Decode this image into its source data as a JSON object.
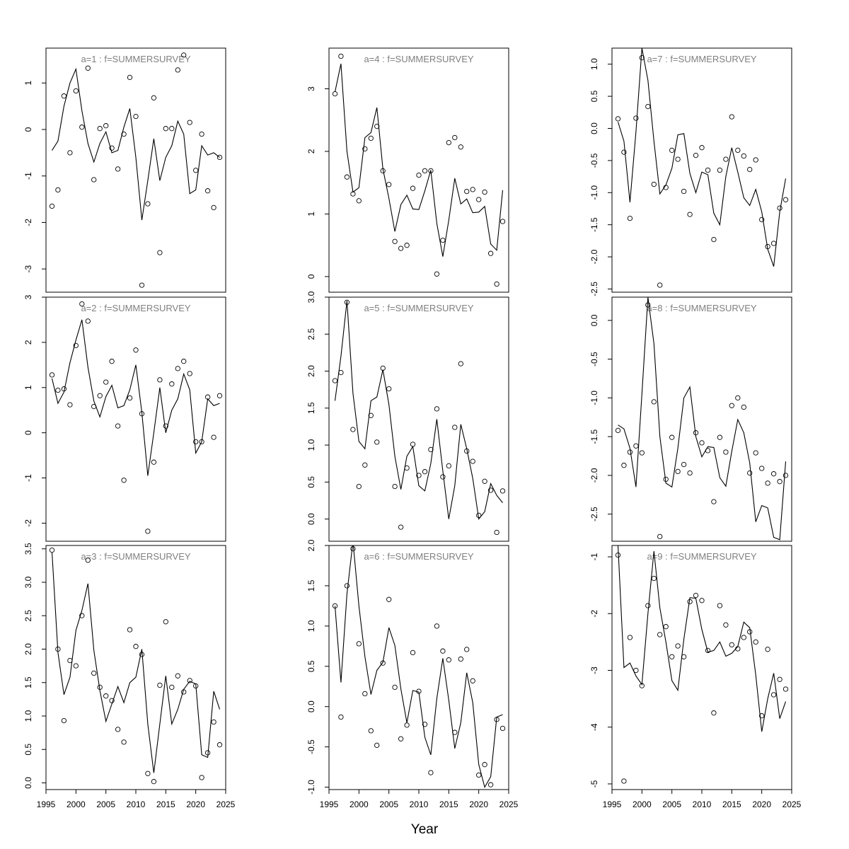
{
  "figure": {
    "xlabel": "Year",
    "x_ticks": [
      1995,
      2000,
      2005,
      2010,
      2015,
      2020,
      2025
    ]
  },
  "chart_data": [
    {
      "type": "scatter",
      "title": "a=1  :  f=SUMMERSURVEY",
      "xlim": [
        1995,
        2025
      ],
      "ylim": [
        -3.5,
        1.75
      ],
      "yticks": [
        -3,
        -2,
        -1,
        0,
        1
      ],
      "ytick_labels": [
        "-3",
        "-2",
        "-1",
        "0",
        "1"
      ],
      "x": [
        1996,
        1997,
        1998,
        1999,
        2000,
        2001,
        2002,
        2003,
        2004,
        2005,
        2006,
        2007,
        2008,
        2009,
        2010,
        2011,
        2012,
        2013,
        2014,
        2015,
        2016,
        2017,
        2018,
        2019,
        2020,
        2021,
        2022,
        2023,
        2024
      ],
      "observed": [
        -1.65,
        -1.3,
        0.72,
        -0.5,
        0.83,
        0.05,
        1.32,
        -1.08,
        0.02,
        0.08,
        -0.4,
        -0.85,
        -0.1,
        1.12,
        0.28,
        -3.35,
        -1.6,
        0.68,
        -2.65,
        0.02,
        0.02,
        1.28,
        1.6,
        0.15,
        -0.88,
        -0.1,
        -1.32,
        -1.68,
        -0.6
      ],
      "fitted": [
        -0.45,
        -0.25,
        0.5,
        1.0,
        1.3,
        0.4,
        -0.3,
        -0.7,
        -0.3,
        -0.05,
        -0.5,
        -0.45,
        0.05,
        0.45,
        -0.6,
        -1.95,
        -1.1,
        -0.2,
        -1.1,
        -0.6,
        -0.35,
        0.18,
        -0.1,
        -1.38,
        -1.3,
        -0.35,
        -0.55,
        -0.5,
        -0.6
      ]
    },
    {
      "type": "scatter",
      "title": "a=2  :  f=SUMMERSURVEY",
      "xlim": [
        1995,
        2025
      ],
      "ylim": [
        -2.4,
        3.0
      ],
      "yticks": [
        -2,
        -1,
        0,
        1,
        2,
        3
      ],
      "ytick_labels": [
        "-2",
        "-1",
        "0",
        "1",
        "2",
        "3"
      ],
      "x": [
        1996,
        1997,
        1998,
        1999,
        2000,
        2001,
        2002,
        2003,
        2004,
        2005,
        2006,
        2007,
        2008,
        2009,
        2010,
        2011,
        2012,
        2013,
        2014,
        2015,
        2016,
        2017,
        2018,
        2019,
        2020,
        2021,
        2022,
        2023,
        2024
      ],
      "observed": [
        1.28,
        0.94,
        0.97,
        0.62,
        1.93,
        2.85,
        2.47,
        0.58,
        0.82,
        1.12,
        1.58,
        0.15,
        -1.05,
        0.77,
        1.83,
        0.42,
        -2.18,
        -0.65,
        1.17,
        0.15,
        1.08,
        1.42,
        1.58,
        1.31,
        -0.2,
        -0.2,
        0.79,
        -0.1,
        0.82
      ],
      "fitted": [
        1.2,
        0.65,
        0.9,
        1.55,
        2.05,
        2.5,
        1.45,
        0.7,
        0.35,
        0.8,
        1.05,
        0.55,
        0.6,
        0.95,
        1.5,
        0.45,
        -0.95,
        0.0,
        1.0,
        0.0,
        0.5,
        0.75,
        1.3,
        0.95,
        -0.45,
        -0.2,
        0.75,
        0.6,
        0.65
      ]
    },
    {
      "type": "scatter",
      "title": "a=3  :  f=SUMMERSURVEY",
      "xlim": [
        1995,
        2025
      ],
      "ylim": [
        -0.1,
        3.55
      ],
      "yticks": [
        0.0,
        0.5,
        1.0,
        1.5,
        2.0,
        2.5,
        3.0,
        3.5
      ],
      "ytick_labels": [
        "0.0",
        "0.5",
        "1.0",
        "1.5",
        "2.0",
        "2.5",
        "3.0",
        "3.5"
      ],
      "x": [
        1996,
        1997,
        1998,
        1999,
        2000,
        2001,
        2002,
        2003,
        2004,
        2005,
        2006,
        2007,
        2008,
        2009,
        2010,
        2011,
        2012,
        2013,
        2014,
        2015,
        2016,
        2017,
        2018,
        2019,
        2020,
        2021,
        2022,
        2023,
        2024
      ],
      "observed": [
        3.48,
        2.0,
        0.93,
        1.83,
        1.75,
        2.5,
        3.33,
        1.64,
        1.43,
        1.3,
        1.23,
        0.8,
        0.61,
        2.29,
        2.04,
        1.92,
        0.14,
        0.02,
        1.46,
        2.41,
        1.43,
        1.6,
        1.36,
        1.53,
        1.45,
        0.08,
        0.45,
        0.91,
        0.57
      ],
      "fitted": [
        3.45,
        1.95,
        1.32,
        1.58,
        2.28,
        2.58,
        2.98,
        1.98,
        1.38,
        0.92,
        1.18,
        1.44,
        1.2,
        1.5,
        1.58,
        2.0,
        0.88,
        0.15,
        0.88,
        1.6,
        0.88,
        1.1,
        1.4,
        1.52,
        1.48,
        0.42,
        0.38,
        1.37,
        1.1
      ]
    },
    {
      "type": "scatter",
      "title": "a=4  :  f=SUMMERSURVEY",
      "xlim": [
        1995,
        2025
      ],
      "ylim": [
        -0.25,
        3.65
      ],
      "yticks": [
        0,
        1,
        2,
        3
      ],
      "ytick_labels": [
        "0",
        "1",
        "2",
        "3"
      ],
      "x": [
        1996,
        1997,
        1998,
        1999,
        2000,
        2001,
        2002,
        2003,
        2004,
        2005,
        2006,
        2007,
        2008,
        2009,
        2010,
        2011,
        2012,
        2013,
        2014,
        2015,
        2016,
        2017,
        2018,
        2019,
        2020,
        2021,
        2022,
        2023,
        2024
      ],
      "observed": [
        2.92,
        3.52,
        1.59,
        1.32,
        1.21,
        2.04,
        2.21,
        2.4,
        1.69,
        1.47,
        0.56,
        0.45,
        0.5,
        1.41,
        1.62,
        1.69,
        1.69,
        0.04,
        0.58,
        2.14,
        2.22,
        2.07,
        1.36,
        1.39,
        1.23,
        1.35,
        0.37,
        -0.12,
        0.88
      ],
      "fitted": [
        2.95,
        3.4,
        2.0,
        1.35,
        1.42,
        2.22,
        2.3,
        2.7,
        1.72,
        1.25,
        0.72,
        1.15,
        1.3,
        1.08,
        1.07,
        1.37,
        1.7,
        0.85,
        0.32,
        0.9,
        1.57,
        1.16,
        1.24,
        1.02,
        1.03,
        1.12,
        0.52,
        0.42,
        1.38
      ]
    },
    {
      "type": "scatter",
      "title": "a=5  :  f=SUMMERSURVEY",
      "xlim": [
        1995,
        2025
      ],
      "ylim": [
        -0.3,
        3.0
      ],
      "yticks": [
        0.0,
        0.5,
        1.0,
        1.5,
        2.0,
        2.5,
        3.0
      ],
      "ytick_labels": [
        "0.0",
        "0.5",
        "1.0",
        "1.5",
        "2.0",
        "2.5",
        "3.0"
      ],
      "x": [
        1996,
        1997,
        1998,
        1999,
        2000,
        2001,
        2002,
        2003,
        2004,
        2005,
        2006,
        2007,
        2008,
        2009,
        2010,
        2011,
        2012,
        2013,
        2014,
        2015,
        2016,
        2017,
        2018,
        2019,
        2020,
        2021,
        2022,
        2023,
        2024
      ],
      "observed": [
        1.87,
        1.98,
        2.93,
        1.21,
        0.44,
        0.73,
        1.4,
        1.04,
        2.04,
        1.76,
        0.44,
        -0.11,
        0.69,
        1.01,
        0.59,
        0.64,
        0.94,
        1.49,
        0.57,
        0.72,
        1.24,
        2.1,
        0.92,
        0.78,
        0.05,
        0.51,
        0.39,
        -0.18,
        0.38
      ],
      "fitted": [
        1.6,
        2.2,
        2.95,
        1.7,
        1.05,
        0.95,
        1.6,
        1.65,
        2.02,
        1.55,
        0.85,
        0.4,
        0.85,
        0.98,
        0.45,
        0.38,
        0.75,
        1.35,
        0.65,
        0.0,
        0.45,
        1.28,
        0.95,
        0.55,
        0.0,
        0.1,
        0.48,
        0.32,
        0.22
      ]
    },
    {
      "type": "scatter",
      "title": "a=6  :  f=SUMMERSURVEY",
      "xlim": [
        1995,
        2025
      ],
      "ylim": [
        -1.03,
        2.0
      ],
      "yticks": [
        -1.0,
        -0.5,
        0.0,
        0.5,
        1.0,
        1.5,
        2.0
      ],
      "ytick_labels": [
        "-1.0",
        "-0.5",
        "0.0",
        "0.5",
        "1.0",
        "1.5",
        "2.0"
      ],
      "x": [
        1996,
        1997,
        1998,
        1999,
        2000,
        2001,
        2002,
        2003,
        2004,
        2005,
        2006,
        2007,
        2008,
        2009,
        2010,
        2011,
        2012,
        2013,
        2014,
        2015,
        2016,
        2017,
        2018,
        2019,
        2020,
        2021,
        2022,
        2023,
        2024
      ],
      "observed": [
        1.25,
        -0.13,
        1.5,
        1.96,
        0.78,
        0.16,
        -0.3,
        -0.48,
        0.54,
        1.33,
        0.24,
        -0.4,
        -0.23,
        0.67,
        0.19,
        -0.22,
        -0.82,
        1.0,
        0.69,
        0.58,
        -0.32,
        0.59,
        0.71,
        0.32,
        -0.85,
        -0.72,
        -0.97,
        -0.16,
        -0.27
      ],
      "fitted": [
        1.25,
        0.3,
        1.4,
        2.05,
        1.25,
        0.62,
        0.15,
        0.45,
        0.55,
        0.98,
        0.76,
        0.22,
        -0.2,
        0.2,
        0.18,
        -0.38,
        -0.6,
        0.1,
        0.6,
        0.08,
        -0.52,
        -0.2,
        0.42,
        0.05,
        -0.72,
        -1.0,
        -0.87,
        -0.13,
        -0.1
      ]
    },
    {
      "type": "scatter",
      "title": "a=7  :  f=SUMMERSURVEY",
      "xlim": [
        1995,
        2025
      ],
      "ylim": [
        -2.55,
        1.25
      ],
      "yticks": [
        -2.5,
        -2.0,
        -1.5,
        -1.0,
        -0.5,
        0.0,
        0.5,
        1.0
      ],
      "ytick_labels": [
        "-2.5",
        "-2.0",
        "-1.5",
        "-1.0",
        "-0.5",
        "0.0",
        "0.5",
        "1.0"
      ],
      "x": [
        1996,
        1997,
        1998,
        1999,
        2000,
        2001,
        2002,
        2003,
        2004,
        2005,
        2006,
        2007,
        2008,
        2009,
        2010,
        2011,
        2012,
        2013,
        2014,
        2015,
        2016,
        2017,
        2018,
        2019,
        2020,
        2021,
        2022,
        2023,
        2024
      ],
      "observed": [
        0.15,
        -0.37,
        -1.4,
        0.16,
        1.1,
        0.34,
        -0.87,
        -2.44,
        -0.92,
        -0.34,
        -0.48,
        -0.98,
        -1.34,
        -0.42,
        -0.3,
        -0.65,
        -1.73,
        -0.65,
        -0.48,
        0.18,
        -0.34,
        -0.43,
        -0.64,
        -0.49,
        -1.42,
        -1.84,
        -1.79,
        -1.24,
        -1.11
      ],
      "fitted": [
        0.1,
        -0.2,
        -1.15,
        -0.05,
        1.25,
        0.75,
        -0.2,
        -1.02,
        -0.88,
        -0.62,
        -0.1,
        -0.08,
        -0.7,
        -1.0,
        -0.68,
        -0.72,
        -1.32,
        -1.5,
        -0.75,
        -0.3,
        -0.68,
        -1.08,
        -1.2,
        -0.95,
        -1.3,
        -1.88,
        -2.15,
        -1.3,
        -0.78
      ]
    },
    {
      "type": "scatter",
      "title": "a=8  :  f=SUMMERSURVEY",
      "xlim": [
        1995,
        2025
      ],
      "ylim": [
        -2.85,
        0.3
      ],
      "yticks": [
        -2.5,
        -2.0,
        -1.5,
        -1.0,
        -0.5,
        0.0
      ],
      "ytick_labels": [
        "-2.5",
        "-2.0",
        "-1.5",
        "-1.0",
        "-0.5",
        "0.0"
      ],
      "x": [
        1996,
        1997,
        1998,
        1999,
        2000,
        2001,
        2002,
        2003,
        2004,
        2005,
        2006,
        2007,
        2008,
        2009,
        2010,
        2011,
        2012,
        2013,
        2014,
        2015,
        2016,
        2017,
        2018,
        2019,
        2020,
        2021,
        2022,
        2023,
        2024
      ],
      "observed": [
        -1.42,
        -1.87,
        -1.7,
        -1.62,
        -1.71,
        0.2,
        -1.05,
        -2.79,
        -2.05,
        -1.51,
        -1.95,
        -1.86,
        -1.97,
        -1.45,
        -1.58,
        -1.68,
        -2.34,
        -1.51,
        -1.7,
        -1.1,
        -1.0,
        -1.12,
        -1.97,
        -1.71,
        -1.91,
        -2.1,
        -1.98,
        -2.08,
        -2.0
      ],
      "fitted": [
        -1.35,
        -1.4,
        -1.65,
        -2.15,
        -0.95,
        0.3,
        -0.3,
        -1.5,
        -2.1,
        -2.15,
        -1.65,
        -1.0,
        -0.86,
        -1.5,
        -1.76,
        -1.63,
        -1.64,
        -2.03,
        -2.14,
        -1.69,
        -1.28,
        -1.45,
        -1.84,
        -2.6,
        -2.39,
        -2.42,
        -2.8,
        -2.83,
        -1.82
      ]
    },
    {
      "type": "scatter",
      "title": "a=9  :  f=SUMMERSURVEY",
      "xlim": [
        1995,
        2025
      ],
      "ylim": [
        -5.1,
        -0.8
      ],
      "yticks": [
        -5,
        -4,
        -3,
        -2,
        -1
      ],
      "ytick_labels": [
        "-5",
        "-4",
        "-3",
        "-2",
        "-1"
      ],
      "x": [
        1996,
        1997,
        1998,
        1999,
        2000,
        2001,
        2002,
        2003,
        2004,
        2005,
        2006,
        2007,
        2008,
        2009,
        2010,
        2011,
        2012,
        2013,
        2014,
        2015,
        2016,
        2017,
        2018,
        2019,
        2020,
        2021,
        2022,
        2023,
        2024
      ],
      "observed": [
        -0.97,
        -4.95,
        -2.42,
        -3.0,
        -3.27,
        -1.86,
        -1.38,
        -2.37,
        -2.23,
        -2.76,
        -2.57,
        -2.76,
        -1.79,
        -1.68,
        -1.77,
        -2.65,
        -3.75,
        -1.86,
        -2.2,
        -2.55,
        -2.62,
        -2.42,
        -2.32,
        -2.5,
        -3.8,
        -2.63,
        -3.43,
        -3.16,
        -3.33
      ],
      "fitted": [
        -0.8,
        -2.95,
        -2.87,
        -3.1,
        -3.25,
        -2.0,
        -0.9,
        -1.9,
        -2.5,
        -3.18,
        -3.35,
        -2.45,
        -1.72,
        -1.73,
        -2.28,
        -2.68,
        -2.65,
        -2.5,
        -2.75,
        -2.7,
        -2.58,
        -2.15,
        -2.25,
        -3.08,
        -4.08,
        -3.5,
        -3.05,
        -3.85,
        -3.55
      ]
    }
  ]
}
